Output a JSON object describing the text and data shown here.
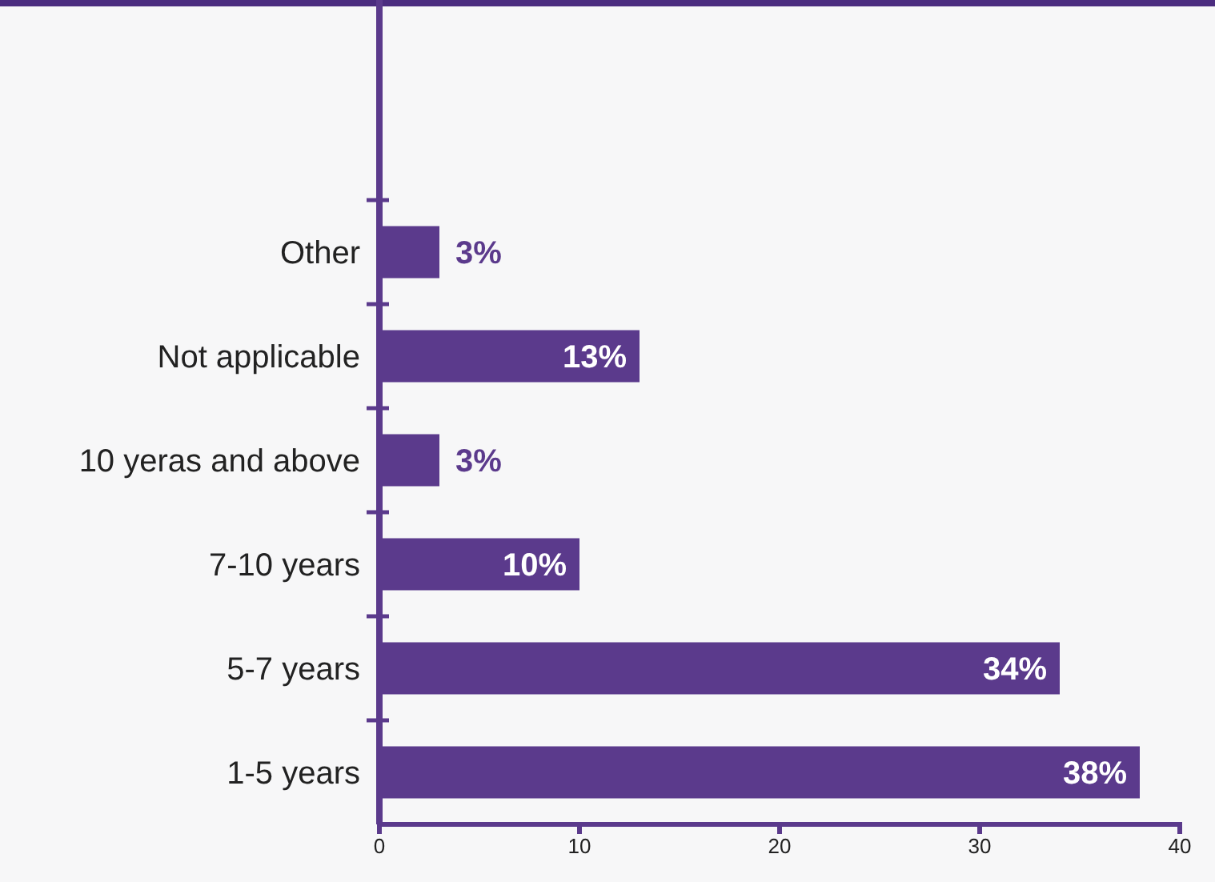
{
  "chart_data": {
    "type": "bar",
    "orientation": "horizontal",
    "categories": [
      "Other",
      "Not applicable",
      "10 yeras and above",
      "7-10 years",
      "5-7 years",
      "1-5 years"
    ],
    "values": [
      3,
      13,
      3,
      10,
      34,
      38
    ],
    "value_labels": [
      "3%",
      "13%",
      "3%",
      "10%",
      "34%",
      "38%"
    ],
    "color": "#5b3a8c",
    "xlim": [
      0,
      40
    ],
    "xticks": [
      0,
      10,
      20,
      30,
      40
    ],
    "grid": false
  }
}
